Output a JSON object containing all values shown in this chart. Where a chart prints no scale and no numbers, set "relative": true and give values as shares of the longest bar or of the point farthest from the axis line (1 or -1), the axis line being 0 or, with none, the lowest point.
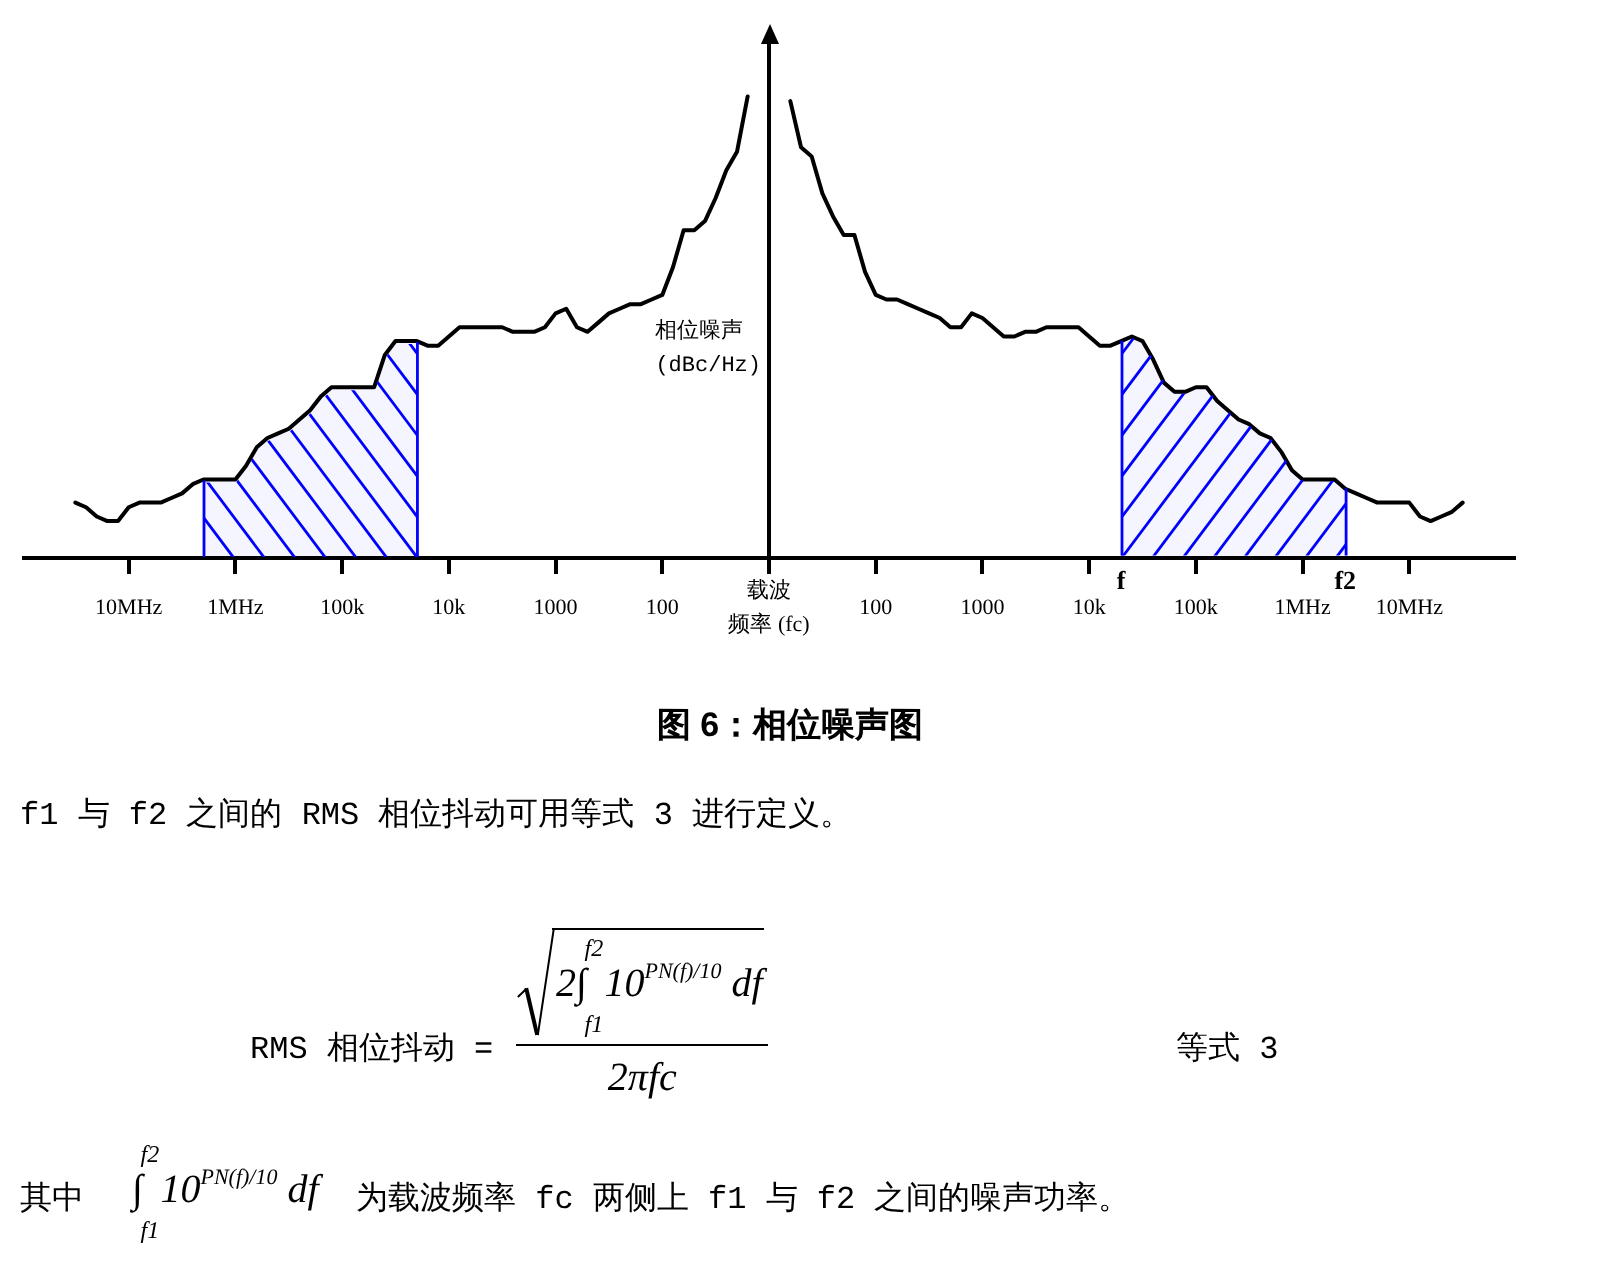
{
  "chart_data": {
    "type": "line",
    "title": "图 6：相位噪声图",
    "ylabel": "相位噪声\n(dBc/Hz)",
    "relative": true,
    "marker": "none",
    "categories": [
      null,
      null,
      null,
      null,
      null,
      null,
      null,
      null,
      null,
      null,
      "10MHz",
      null,
      null,
      null,
      null,
      null,
      null,
      null,
      null,
      null,
      "1MHz",
      null,
      null,
      null,
      null,
      null,
      null,
      null,
      null,
      null,
      "100k",
      null,
      null,
      null,
      null,
      null,
      null,
      null,
      null,
      null,
      "10k",
      null,
      null,
      null,
      null,
      null,
      null,
      null,
      null,
      null,
      "1000",
      null,
      null,
      null,
      null,
      null,
      null,
      null,
      null,
      null,
      "100",
      null,
      null,
      null,
      null,
      null,
      null,
      null,
      null,
      null,
      "载波频率 (fc)",
      null,
      null,
      null,
      null,
      null,
      null,
      null,
      null,
      null,
      "100",
      null,
      null,
      null,
      null,
      null,
      null,
      null,
      null,
      null,
      "1000",
      null,
      null,
      null,
      null,
      null,
      null,
      null,
      null,
      null,
      "10k",
      null,
      null,
      null,
      null,
      null,
      null,
      null,
      null,
      null,
      "100k",
      null,
      null,
      null,
      null,
      null,
      null,
      null,
      null,
      null,
      "1MHz",
      null,
      null,
      null,
      null,
      null,
      null,
      null,
      null,
      null,
      "10MHz",
      null,
      null,
      null,
      null,
      null,
      null,
      null,
      null,
      null,
      null
    ],
    "series": [
      {
        "color": "#000000",
        "values": [
          null,
          null,
          null,
          null,
          null,
          0.12,
          0.11,
          0.09,
          0.08,
          0.08,
          0.11,
          0.12,
          0.12,
          0.12,
          0.13,
          0.14,
          0.16,
          0.17,
          0.17,
          0.17,
          0.17,
          0.2,
          0.24,
          0.26,
          0.27,
          0.28,
          0.3,
          0.32,
          0.35,
          0.37,
          0.37,
          0.37,
          0.37,
          0.37,
          0.44,
          0.47,
          0.47,
          0.47,
          0.46,
          0.46,
          0.48,
          0.5,
          0.5,
          0.5,
          0.5,
          0.5,
          0.49,
          0.49,
          0.49,
          0.5,
          0.53,
          0.54,
          0.5,
          0.49,
          0.51,
          0.53,
          0.54,
          0.55,
          0.55,
          0.56,
          0.57,
          0.63,
          0.71,
          0.71,
          0.73,
          0.78,
          0.84,
          0.88,
          1,
          null,
          null,
          null,
          0.99,
          0.89,
          0.87,
          0.79,
          0.74,
          0.7,
          0.7,
          0.62,
          0.57,
          0.56,
          0.56,
          0.55,
          0.54,
          0.53,
          0.52,
          0.5,
          0.5,
          0.53,
          0.52,
          0.5,
          0.48,
          0.48,
          0.49,
          0.49,
          0.5,
          0.5,
          0.5,
          0.5,
          0.48,
          0.46,
          0.46,
          0.47,
          0.48,
          0.47,
          0.43,
          0.38,
          0.36,
          0.36,
          0.37,
          0.37,
          0.34,
          0.32,
          0.3,
          0.29,
          0.27,
          0.26,
          0.23,
          0.19,
          0.17,
          0.17,
          0.17,
          0.17,
          0.15,
          0.14,
          0.13,
          0.12,
          0.12,
          0.12,
          0.12,
          0.09,
          0.08,
          0.09,
          0.1,
          0.12,
          null,
          null,
          null,
          null,
          null
        ]
      },
      {
        "type": "area",
        "color": "#0000ff",
        "values": [
          null,
          null,
          null,
          null,
          null,
          null,
          null,
          null,
          null,
          null,
          null,
          null,
          null,
          null,
          null,
          null,
          null,
          0.17,
          0.17,
          0.17,
          0.17,
          0.2,
          0.24,
          0.26,
          0.27,
          0.28,
          0.3,
          0.32,
          0.35,
          0.37,
          0.37,
          0.37,
          0.37,
          0.37,
          0.44,
          0.47,
          0.47,
          0.47,
          null,
          null,
          null,
          null,
          null,
          null,
          null,
          null,
          null,
          null,
          null,
          null,
          null,
          null,
          null,
          null,
          null,
          null,
          null,
          null,
          null,
          null,
          null,
          null,
          null,
          null,
          null,
          null,
          null,
          null,
          null,
          null,
          null,
          null,
          null,
          null,
          null,
          null,
          null,
          null,
          null,
          null,
          null,
          null,
          null,
          null,
          null,
          null,
          null,
          null,
          null,
          null,
          null,
          null,
          null,
          null,
          null,
          null,
          null,
          null,
          null,
          null,
          null,
          null,
          null,
          null,
          null,
          null,
          null,
          null,
          null,
          null,
          null,
          null,
          null,
          null,
          null,
          null,
          null,
          null,
          null,
          null,
          null,
          null,
          null,
          null,
          null,
          null,
          null,
          null,
          null,
          null,
          null,
          null,
          null,
          null,
          null,
          null,
          null,
          null,
          null,
          null,
          null
        ]
      },
      {
        "type": "area",
        "color": "#0000ff",
        "values": [
          null,
          null,
          null,
          null,
          null,
          null,
          null,
          null,
          null,
          null,
          null,
          null,
          null,
          null,
          null,
          null,
          null,
          null,
          null,
          null,
          null,
          null,
          null,
          null,
          null,
          null,
          null,
          null,
          null,
          null,
          null,
          null,
          null,
          null,
          null,
          null,
          null,
          null,
          null,
          null,
          null,
          null,
          null,
          null,
          null,
          null,
          null,
          null,
          null,
          null,
          null,
          null,
          null,
          null,
          null,
          null,
          null,
          null,
          null,
          null,
          null,
          null,
          null,
          null,
          null,
          null,
          null,
          null,
          null,
          null,
          null,
          null,
          null,
          null,
          null,
          null,
          null,
          null,
          null,
          null,
          null,
          null,
          null,
          null,
          null,
          null,
          null,
          null,
          null,
          null,
          null,
          null,
          null,
          null,
          null,
          null,
          null,
          null,
          null,
          null,
          null,
          null,
          null,
          0.47,
          0.48,
          0.47,
          0.43,
          0.38,
          0.36,
          0.36,
          0.37,
          0.37,
          0.34,
          0.32,
          0.3,
          0.29,
          0.27,
          0.26,
          0.23,
          0.19,
          0.17,
          0.17,
          0.17,
          0.17,
          0.15,
          null,
          null,
          null,
          null,
          null,
          null,
          null,
          null,
          null,
          null,
          null,
          null,
          null,
          null,
          null,
          null
        ]
      }
    ],
    "annotations": [
      "f",
      "f2",
      "f1 与 f2 之间的 RMS 相位抖动可用等式 3 进行定义。",
      "RMS 相位抖动 =",
      "2∫$_{f1}$$^{f2}$10$^{PN(f)/10}$ df",
      "2πfc",
      "等式 3",
      "其中",
      "∫$_{f1}$$^{f2}$10$^{PN(f)/10}$ df",
      "为载波频率 fc 两侧上 f1 与 f2 之间的噪声功率。"
    ]
  }
}
